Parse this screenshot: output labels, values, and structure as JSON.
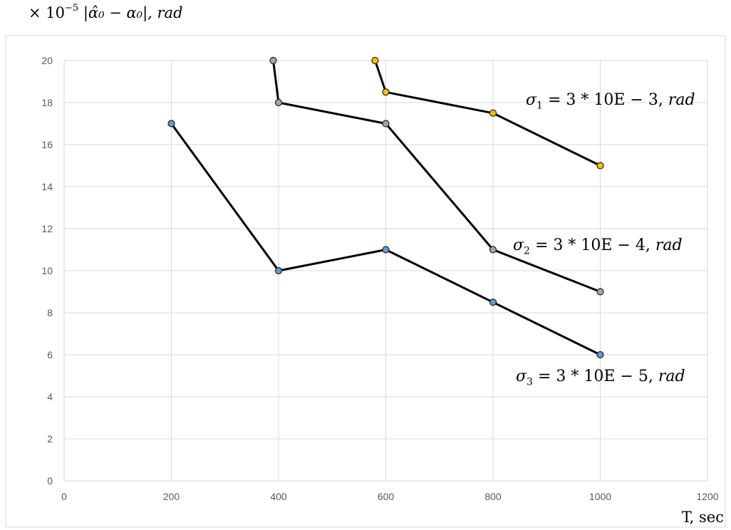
{
  "chart_data": {
    "type": "line",
    "ylabel_prefix": "× 10",
    "ylabel_exponent": "−5",
    "ylabel_expr": "|α̂₀ − α₀|, rad",
    "xlabel": "T, sec",
    "xlim": [
      0,
      1200
    ],
    "ylim": [
      0,
      20
    ],
    "x_ticks": [
      "0",
      "200",
      "400",
      "600",
      "800",
      "1000",
      "1200"
    ],
    "y_ticks": [
      "0",
      "2",
      "4",
      "6",
      "8",
      "10",
      "12",
      "14",
      "16",
      "18",
      "20"
    ],
    "grid": true,
    "series": [
      {
        "name": "σ1 = 3 * 10E − 3, rad",
        "name_symbol": "σ",
        "name_sub": "1",
        "name_rest": " = 3 * 10E − 3, ",
        "name_unit": "rad",
        "color": "#FFC000",
        "points": [
          [
            580,
            20
          ],
          [
            600,
            18.5
          ],
          [
            800,
            17.5
          ],
          [
            1000,
            15
          ]
        ]
      },
      {
        "name": "σ2 = 3 * 10E − 4, rad",
        "name_symbol": "σ",
        "name_sub": "2",
        "name_rest": " = 3 * 10E − 4, ",
        "name_unit": "rad",
        "color": "#A5A5A5",
        "points": [
          [
            390,
            20
          ],
          [
            400,
            18
          ],
          [
            600,
            17
          ],
          [
            800,
            11
          ],
          [
            1000,
            9
          ]
        ]
      },
      {
        "name": "σ3 = 3 * 10E − 5, rad",
        "name_symbol": "σ",
        "name_sub": "3",
        "name_rest": " = 3 * 10E − 5, ",
        "name_unit": "rad",
        "color": "#5B9BD5",
        "points": [
          [
            200,
            17
          ],
          [
            400,
            10
          ],
          [
            600,
            11
          ],
          [
            800,
            8.5
          ],
          [
            1000,
            6
          ]
        ]
      }
    ]
  }
}
